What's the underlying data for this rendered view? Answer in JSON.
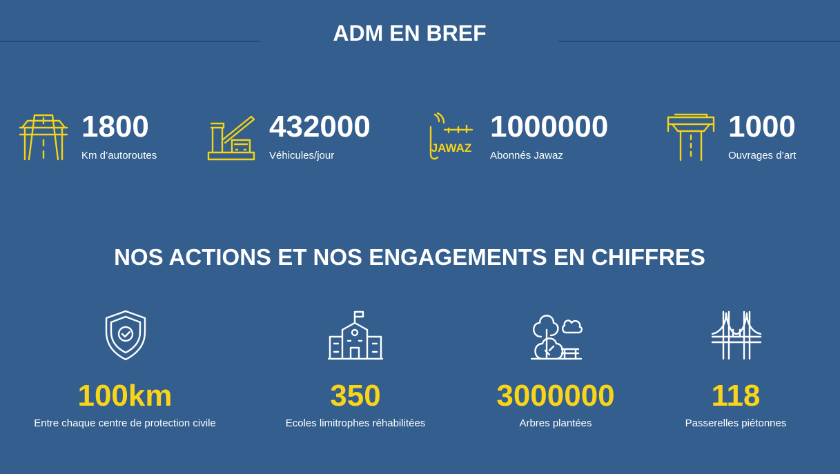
{
  "header": {
    "title": "ADM EN BREF"
  },
  "brief_stats": [
    {
      "value": "1800",
      "label": "Km d’autoroutes"
    },
    {
      "value": "432000",
      "label": "Véhicules/jour"
    },
    {
      "value": "1000000",
      "label": "Abonnés Jawaz",
      "logo_text": "JAWAZ"
    },
    {
      "value": "1000",
      "label": "Ouvrages d’art"
    }
  ],
  "actions": {
    "title": "NOS ACTIONS ET NOS ENGAGEMENTS EN CHIFFRES",
    "items": [
      {
        "value": "100km",
        "label": "Entre chaque centre de protection civile"
      },
      {
        "value": "350",
        "label": "Ecoles limitrophes réhabilitées"
      },
      {
        "value": "3000000",
        "label": "Arbres plantées"
      },
      {
        "value": "118",
        "label": "Passerelles piétonnes"
      }
    ]
  }
}
